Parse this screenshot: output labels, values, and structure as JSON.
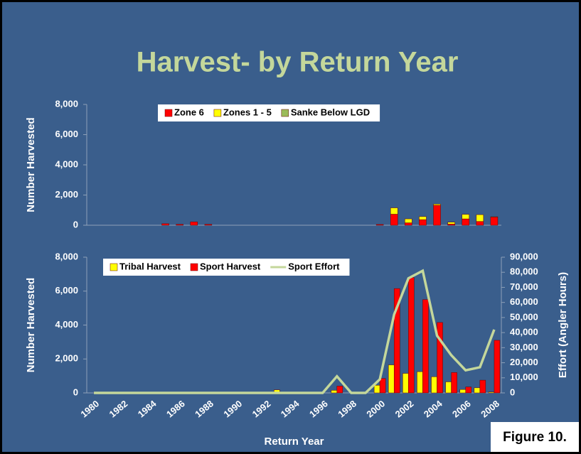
{
  "title": "Harvest- by Return Year",
  "figure_label": "Figure 10.",
  "chart_data": [
    {
      "type": "stacked_bar",
      "ylabel": "Number Harvested",
      "ylim": [
        0,
        8000
      ],
      "yticks": [
        0,
        {
          "value": 2000,
          "label": "2,000"
        },
        {
          "value": 4000,
          "label": "4,000"
        },
        {
          "value": 6000,
          "label": "6,000"
        },
        {
          "value": 8000,
          "label": "8,000"
        }
      ],
      "series": [
        {
          "name": "Zone 6",
          "color": "#ff0000",
          "values": [
            0,
            0,
            0,
            0,
            0,
            100,
            60,
            220,
            60,
            0,
            0,
            0,
            0,
            0,
            0,
            0,
            0,
            0,
            0,
            0,
            50,
            730,
            160,
            370,
            1320,
            80,
            420,
            250,
            530
          ]
        },
        {
          "name": "Zones 1 - 5",
          "color": "#ffff00",
          "values": [
            0,
            0,
            0,
            0,
            0,
            0,
            0,
            0,
            0,
            0,
            0,
            0,
            0,
            0,
            0,
            0,
            0,
            0,
            0,
            0,
            0,
            420,
            260,
            200,
            80,
            120,
            300,
            450,
            30
          ]
        },
        {
          "name": "Sanke Below LGD",
          "color": "#9bbb59",
          "values": [
            0,
            0,
            0,
            0,
            0,
            0,
            0,
            0,
            0,
            0,
            0,
            0,
            0,
            0,
            0,
            0,
            0,
            0,
            0,
            0,
            0,
            0,
            0,
            0,
            0,
            0,
            0,
            0,
            0
          ]
        }
      ]
    },
    {
      "type": "bar",
      "xlabel": "Return Year",
      "ylabel": "Number Harvested",
      "y2label": "Effort (Angler Hours)",
      "categories": [
        "1980",
        null,
        "1982",
        null,
        "1984",
        null,
        "1986",
        null,
        "1988",
        null,
        "1990",
        null,
        "1992",
        null,
        "1994",
        null,
        "1996",
        null,
        "1998",
        null,
        "2000",
        null,
        "2002",
        null,
        "2004",
        null,
        "2006",
        null,
        "2008"
      ],
      "ylim": [
        0,
        8000
      ],
      "yticks": [
        0,
        {
          "value": 2000,
          "label": "2,000"
        },
        {
          "value": 4000,
          "label": "4,000"
        },
        {
          "value": 6000,
          "label": "6,000"
        },
        {
          "value": 8000,
          "label": "8,000"
        }
      ],
      "y2lim": [
        0,
        90000
      ],
      "y2ticks": [
        0,
        {
          "value": 10000,
          "label": "10,000"
        },
        {
          "value": 20000,
          "label": "20,000"
        },
        {
          "value": 30000,
          "label": "30,000"
        },
        {
          "value": 40000,
          "label": "40,000"
        },
        {
          "value": 50000,
          "label": "50,000"
        },
        {
          "value": 60000,
          "label": "60,000"
        },
        {
          "value": 70000,
          "label": "70,000"
        },
        {
          "value": 80000,
          "label": "80,000"
        },
        {
          "value": 90000,
          "label": "90,000"
        }
      ],
      "series": [
        {
          "name": "Tribal Harvest",
          "color": "#ffff00",
          "values": [
            0,
            0,
            0,
            0,
            0,
            0,
            0,
            0,
            0,
            0,
            0,
            0,
            0,
            180,
            0,
            0,
            0,
            150,
            0,
            0,
            450,
            1650,
            1150,
            1250,
            950,
            650,
            200,
            300,
            50
          ]
        },
        {
          "name": "Sport Harvest",
          "color": "#ff0000",
          "values": [
            20,
            0,
            0,
            0,
            0,
            0,
            0,
            0,
            0,
            0,
            0,
            0,
            0,
            0,
            0,
            0,
            0,
            400,
            0,
            0,
            850,
            6150,
            6800,
            5500,
            4150,
            1200,
            350,
            750,
            3100
          ]
        },
        {
          "name": "Sport Effort",
          "color": "#c4d79b",
          "type": "line",
          "axis": "y2",
          "values": [
            0,
            0,
            0,
            0,
            0,
            0,
            0,
            0,
            0,
            0,
            0,
            0,
            0,
            0,
            0,
            0,
            0,
            11000,
            0,
            0,
            9000,
            52000,
            76000,
            81000,
            38000,
            25000,
            15000,
            17000,
            42000
          ]
        }
      ]
    }
  ]
}
